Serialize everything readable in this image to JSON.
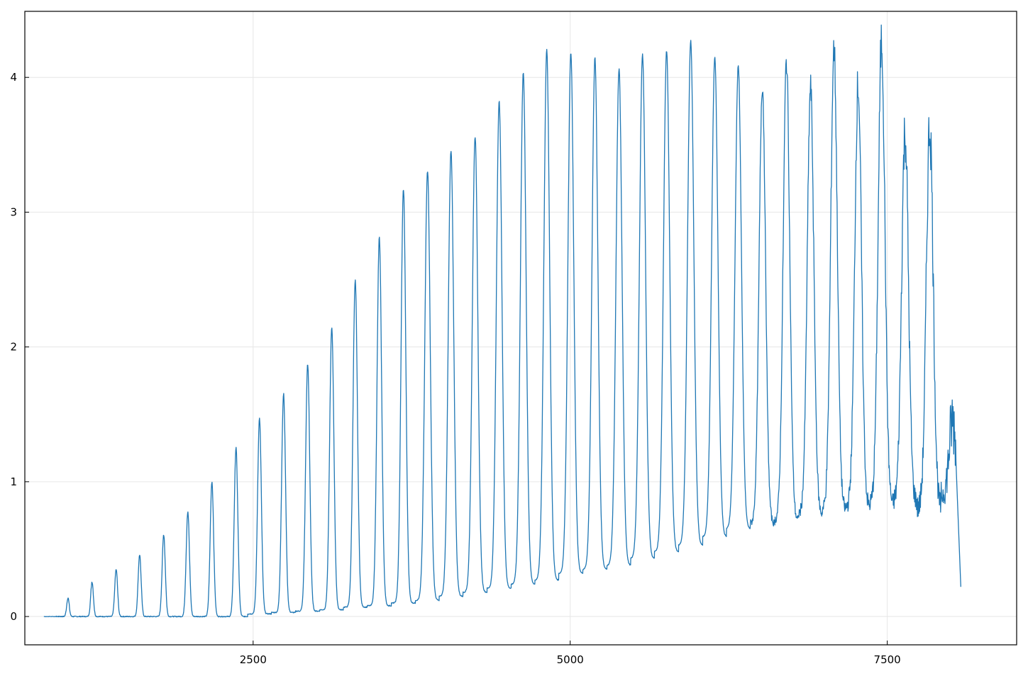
{
  "chart_data": {
    "type": "line",
    "title": "",
    "xlabel": "",
    "ylabel": "",
    "xlim": [
      700,
      8520
    ],
    "ylim": [
      -0.21,
      4.49
    ],
    "grid": true,
    "legend": "none",
    "x_ticks": [
      2500,
      5000,
      7500
    ],
    "x_tick_labels": [
      "2500",
      "5000",
      "7500"
    ],
    "y_ticks": [
      0,
      1,
      2,
      3,
      4
    ],
    "y_tick_labels": [
      "0",
      "1",
      "2",
      "3",
      "4"
    ],
    "series": [
      {
        "color": "#1f77b4",
        "peaks_x": [
          1040,
          1230,
          1420,
          1605,
          1795,
          1985,
          2175,
          2365,
          2550,
          2740,
          2930,
          3120,
          3305,
          3495,
          3685,
          3875,
          4060,
          4250,
          4440,
          4630,
          4815,
          5005,
          5195,
          5385,
          5570,
          5760,
          5950,
          6140,
          6325,
          6515,
          6705,
          6895,
          7080,
          7270,
          7455,
          7640,
          7835,
          8015
        ],
        "peaks_y": [
          0.14,
          0.26,
          0.35,
          0.46,
          0.61,
          0.78,
          1.0,
          1.25,
          1.47,
          1.65,
          1.87,
          2.14,
          2.49,
          2.81,
          3.17,
          3.31,
          3.45,
          3.56,
          3.82,
          4.03,
          4.2,
          4.18,
          4.14,
          4.06,
          4.17,
          4.2,
          4.27,
          4.15,
          4.08,
          3.94,
          4.12,
          3.92,
          4.21,
          3.95,
          4.27,
          3.6,
          3.65,
          1.45
        ],
        "troughs_y": [
          0.0,
          0.0,
          0.0,
          0.0,
          0.0,
          0.0,
          0.0,
          0.0,
          0.02,
          0.03,
          0.04,
          0.05,
          0.07,
          0.08,
          0.1,
          0.12,
          0.15,
          0.18,
          0.21,
          0.24,
          0.27,
          0.32,
          0.35,
          0.38,
          0.43,
          0.48,
          0.53,
          0.59,
          0.65,
          0.69,
          0.71,
          0.76,
          0.79,
          0.81,
          0.83,
          0.85,
          0.8,
          0.9
        ],
        "start_x": 850,
        "end_x": 8080,
        "end_y": 0.22
      }
    ]
  }
}
